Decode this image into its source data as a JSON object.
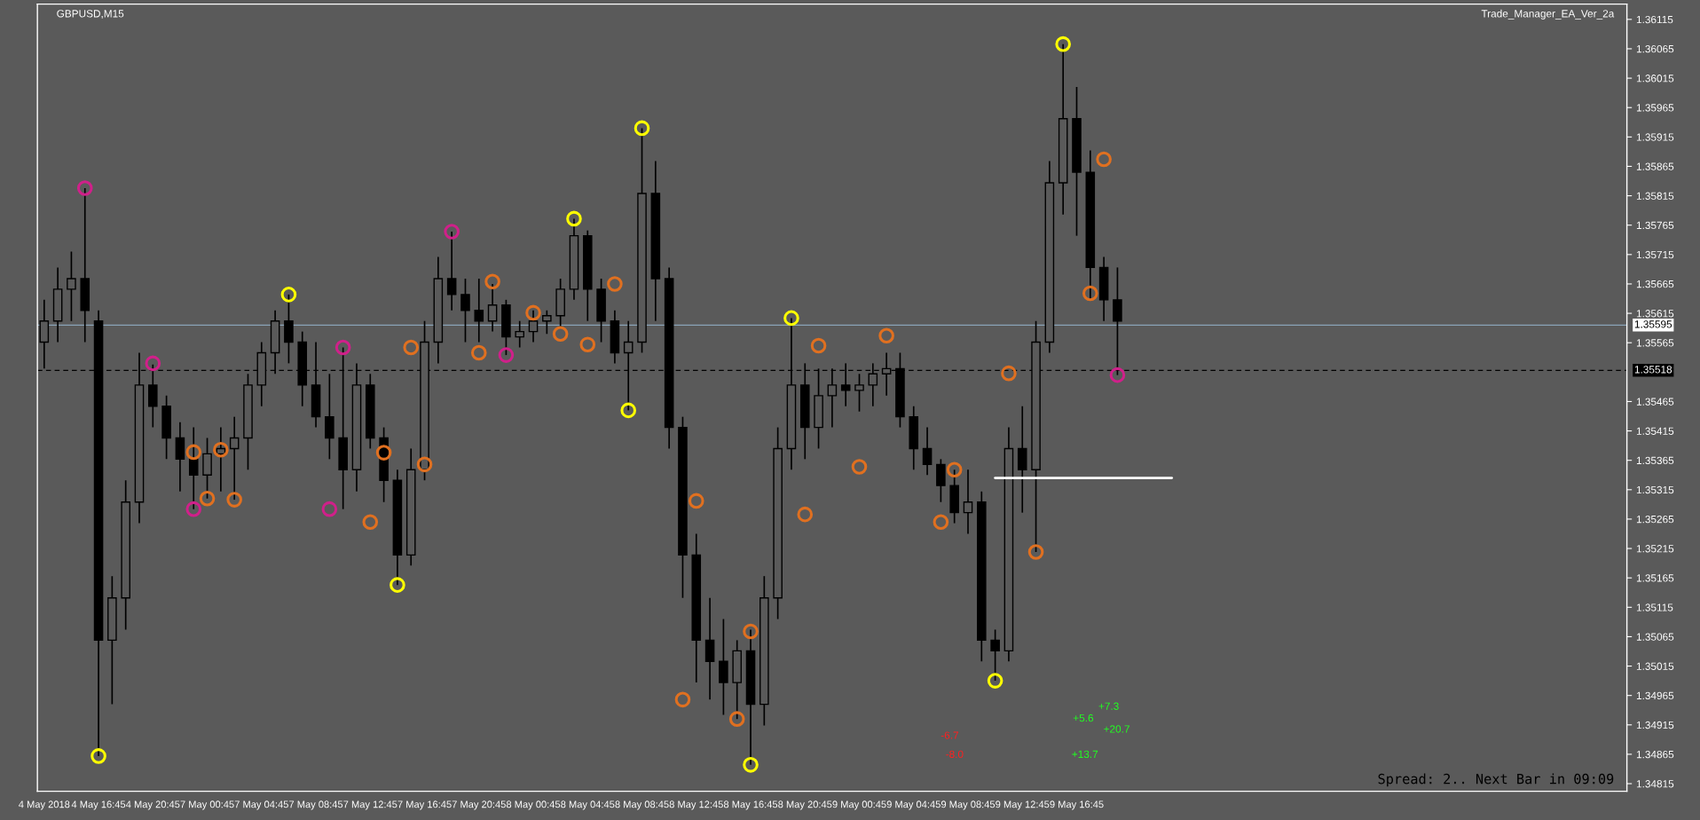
{
  "chart_data": {
    "type": "candlestick",
    "title": "GBPUSD,M15",
    "categories": [
      "4 May 2018",
      null,
      null,
      null,
      "4 May 16:45",
      null,
      null,
      null,
      "4 May 20:45",
      null,
      null,
      null,
      "7 May 00:45",
      null,
      null,
      null,
      "7 May 04:45",
      null,
      null,
      null,
      "7 May 08:45",
      null,
      null,
      null,
      "7 May 12:45",
      null,
      null,
      null,
      "7 May 16:45",
      null,
      null,
      null,
      "7 May 20:45",
      null,
      null,
      null,
      "8 May 00:45",
      null,
      null,
      null,
      "8 May 04:45",
      null,
      null,
      null,
      "8 May 08:45",
      null,
      null,
      null,
      "8 May 12:45",
      null,
      null,
      null,
      "8 May 16:45",
      null,
      null,
      null,
      "8 May 20:45",
      null,
      null,
      null,
      "9 May 00:45",
      null,
      null,
      null,
      "9 May 04:45",
      null,
      null,
      null,
      "9 May 08:45",
      null,
      null,
      null,
      "9 May 12:45",
      null,
      null,
      null,
      "9 May 16:45",
      null,
      null,
      null,
      null,
      null,
      null,
      null,
      null,
      null,
      null,
      null,
      null,
      null,
      null,
      null,
      null,
      null,
      null,
      null,
      null,
      null,
      null,
      null,
      null,
      null,
      null,
      null,
      null,
      null,
      null,
      null,
      null,
      null,
      null,
      null,
      null,
      null,
      null,
      null,
      null
    ],
    "ohlc": [
      [
        1.35566,
        1.35638,
        1.35521,
        1.35602
      ],
      [
        1.35602,
        1.35693,
        1.35566,
        1.35656
      ],
      [
        1.35656,
        1.3572,
        1.35602,
        1.35674
      ],
      [
        1.35674,
        1.35828,
        1.35566,
        1.3562
      ],
      [
        1.35602,
        1.3562,
        1.34862,
        1.35059
      ],
      [
        1.35059,
        1.35168,
        1.3495,
        1.35131
      ],
      [
        1.35131,
        1.35331,
        1.35077,
        1.35294
      ],
      [
        1.35294,
        1.35548,
        1.35258,
        1.35493
      ],
      [
        1.35493,
        1.35528,
        1.35421,
        1.35457
      ],
      [
        1.35457,
        1.35475,
        1.35367,
        1.35403
      ],
      [
        1.35403,
        1.3543,
        1.35312,
        1.35367
      ],
      [
        1.35367,
        1.35421,
        1.35282,
        1.3534
      ],
      [
        1.3534,
        1.35403,
        1.353,
        1.35376
      ],
      [
        1.35376,
        1.35421,
        1.35312,
        1.35385
      ],
      [
        1.35385,
        1.35439,
        1.35298,
        1.35403
      ],
      [
        1.35403,
        1.35512,
        1.35349,
        1.35493
      ],
      [
        1.35493,
        1.35566,
        1.35457,
        1.35548
      ],
      [
        1.35548,
        1.3562,
        1.35512,
        1.35602
      ],
      [
        1.35602,
        1.35647,
        1.3553,
        1.35566
      ],
      [
        1.35566,
        1.35584,
        1.35457,
        1.35493
      ],
      [
        1.35493,
        1.35566,
        1.35421,
        1.35439
      ],
      [
        1.35439,
        1.35512,
        1.35367,
        1.35403
      ],
      [
        1.35403,
        1.35557,
        1.35282,
        1.35349
      ],
      [
        1.35349,
        1.3553,
        1.35312,
        1.35493
      ],
      [
        1.35493,
        1.35512,
        1.35385,
        1.35403
      ],
      [
        1.35403,
        1.35421,
        1.35294,
        1.35331
      ],
      [
        1.35331,
        1.35349,
        1.35153,
        1.35204
      ],
      [
        1.35204,
        1.35385,
        1.35186,
        1.35349
      ],
      [
        1.35349,
        1.35602,
        1.35331,
        1.35566
      ],
      [
        1.35566,
        1.35711,
        1.3553,
        1.35674
      ],
      [
        1.35674,
        1.35754,
        1.3562,
        1.35647
      ],
      [
        1.35647,
        1.35674,
        1.35566,
        1.3562
      ],
      [
        1.3562,
        1.35674,
        1.35566,
        1.35602
      ],
      [
        1.35602,
        1.35665,
        1.35584,
        1.35629
      ],
      [
        1.35629,
        1.35638,
        1.35544,
        1.35575
      ],
      [
        1.35575,
        1.35602,
        1.35557,
        1.35584
      ],
      [
        1.35584,
        1.3562,
        1.35566,
        1.35602
      ],
      [
        1.35602,
        1.3562,
        1.3558,
        1.35611
      ],
      [
        1.35611,
        1.35674,
        1.35593,
        1.35656
      ],
      [
        1.35656,
        1.35776,
        1.35638,
        1.35747
      ],
      [
        1.35747,
        1.35756,
        1.35602,
        1.35656
      ],
      [
        1.35656,
        1.35674,
        1.35566,
        1.35602
      ],
      [
        1.35602,
        1.3562,
        1.3553,
        1.35548
      ],
      [
        1.35548,
        1.35602,
        1.3545,
        1.35566
      ],
      [
        1.35566,
        1.3593,
        1.35548,
        1.35819
      ],
      [
        1.35819,
        1.35874,
        1.35602,
        1.35674
      ],
      [
        1.35674,
        1.35693,
        1.35385,
        1.35421
      ],
      [
        1.35421,
        1.35439,
        1.35131,
        1.35204
      ],
      [
        1.35204,
        1.3524,
        1.34987,
        1.35059
      ],
      [
        1.35059,
        1.35131,
        1.34958,
        1.35023
      ],
      [
        1.35023,
        1.35095,
        1.34932,
        1.34987
      ],
      [
        1.34987,
        1.35059,
        1.34925,
        1.35041
      ],
      [
        1.35041,
        1.35077,
        1.34847,
        1.3495
      ],
      [
        1.3495,
        1.35168,
        1.34914,
        1.35131
      ],
      [
        1.35131,
        1.35421,
        1.35095,
        1.35385
      ],
      [
        1.35385,
        1.35607,
        1.35349,
        1.35493
      ],
      [
        1.35493,
        1.3553,
        1.35367,
        1.35421
      ],
      [
        1.35421,
        1.35521,
        1.35385,
        1.35475
      ],
      [
        1.35475,
        1.35521,
        1.35421,
        1.35493
      ],
      [
        1.35493,
        1.3553,
        1.35457,
        1.35484
      ],
      [
        1.35484,
        1.35512,
        1.35448,
        1.35493
      ],
      [
        1.35493,
        1.3553,
        1.35457,
        1.35512
      ],
      [
        1.35512,
        1.35548,
        1.35475,
        1.35521
      ],
      [
        1.35521,
        1.35548,
        1.35421,
        1.35439
      ],
      [
        1.35439,
        1.35457,
        1.35349,
        1.35385
      ],
      [
        1.35385,
        1.35421,
        1.3534,
        1.35358
      ],
      [
        1.35358,
        1.35367,
        1.35294,
        1.35322
      ],
      [
        1.35322,
        1.35349,
        1.35258,
        1.35276
      ],
      [
        1.35276,
        1.35349,
        1.3524,
        1.35294
      ],
      [
        1.35294,
        1.35312,
        1.35023,
        1.35059
      ],
      [
        1.35059,
        1.35077,
        1.3499,
        1.35041
      ],
      [
        1.35041,
        1.35421,
        1.35023,
        1.35385
      ],
      [
        1.35385,
        1.35457,
        1.35276,
        1.35349
      ],
      [
        1.35349,
        1.35602,
        1.35209,
        1.35566
      ],
      [
        1.35566,
        1.35874,
        1.35548,
        1.35837
      ],
      [
        1.35837,
        1.36073,
        1.35783,
        1.35946
      ],
      [
        1.35946,
        1.36,
        1.35747,
        1.35855
      ],
      [
        1.35855,
        1.35892,
        1.35638,
        1.35693
      ],
      [
        1.35693,
        1.35711,
        1.35602,
        1.35638
      ],
      [
        1.35638,
        1.35693,
        1.3551,
        1.35602
      ],
      null,
      null,
      null,
      null,
      null,
      null,
      null,
      null,
      null,
      null,
      null,
      null,
      null,
      null,
      null,
      null,
      null,
      null,
      null,
      null,
      null,
      null,
      null,
      null,
      null,
      null,
      null,
      null,
      null,
      null,
      null,
      null,
      null,
      null,
      null,
      null,
      null
    ],
    "color": "#000000",
    "series": [
      {
        "type": "scatter",
        "color": "#ffff00",
        "marker": "circle",
        "values": [
          null,
          null,
          null,
          null,
          1.34862,
          null,
          null,
          null,
          null,
          null,
          null,
          null,
          null,
          null,
          null,
          null,
          null,
          null,
          1.35647,
          null,
          null,
          null,
          null,
          null,
          null,
          null,
          1.35153,
          null,
          null,
          null,
          null,
          null,
          null,
          null,
          null,
          null,
          null,
          null,
          null,
          1.35776,
          null,
          null,
          null,
          1.3545,
          1.3593,
          null,
          null,
          null,
          null,
          null,
          null,
          null,
          1.34847,
          null,
          null,
          1.35607,
          null,
          null,
          null,
          null,
          null,
          null,
          null,
          null,
          null,
          null,
          null,
          null,
          null,
          null,
          1.3499,
          null,
          null,
          null,
          null,
          1.36073,
          null,
          null,
          null,
          null,
          null,
          null,
          null,
          null,
          null,
          null,
          null,
          null,
          null,
          null,
          null,
          null,
          null,
          null,
          null,
          null,
          null,
          null,
          null,
          null,
          null,
          null,
          null,
          null,
          null,
          null,
          null,
          null,
          null,
          null,
          null,
          null,
          null,
          null,
          null,
          null,
          null
        ]
      },
      {
        "type": "scatter",
        "color": "#e07020",
        "marker": "circle",
        "values": [
          null,
          null,
          null,
          null,
          null,
          null,
          null,
          null,
          null,
          null,
          null,
          1.35379,
          1.353,
          1.35383,
          1.35298,
          null,
          null,
          null,
          null,
          null,
          null,
          null,
          null,
          null,
          1.3526,
          1.35378,
          null,
          1.35557,
          1.35358,
          null,
          null,
          null,
          1.35548,
          1.35669,
          null,
          null,
          1.35616,
          null,
          1.3558,
          null,
          1.35562,
          null,
          1.35665,
          null,
          null,
          null,
          null,
          1.34958,
          1.35296,
          null,
          null,
          1.34925,
          1.35074,
          null,
          null,
          null,
          1.35273,
          1.3556,
          null,
          null,
          1.35354,
          null,
          1.35577,
          null,
          null,
          null,
          1.3526,
          1.35349,
          null,
          null,
          null,
          1.35513,
          null,
          1.35209,
          null,
          null,
          null,
          1.35649,
          1.35877,
          null,
          null,
          null,
          null,
          null,
          null,
          null,
          null,
          null,
          null,
          null,
          null,
          null,
          null,
          null,
          null,
          null,
          null,
          null,
          null,
          null,
          null,
          null,
          null,
          null,
          null,
          null,
          null,
          null,
          null,
          null,
          null,
          null,
          null,
          null,
          null,
          null,
          null
        ]
      },
      {
        "type": "scatter",
        "color": "#d0208a",
        "marker": "circle",
        "values": [
          null,
          null,
          null,
          1.35828,
          null,
          null,
          null,
          null,
          1.3553,
          null,
          null,
          1.35282,
          null,
          null,
          null,
          null,
          null,
          null,
          null,
          null,
          null,
          1.35282,
          1.35557,
          null,
          null,
          null,
          null,
          null,
          null,
          null,
          1.35754,
          null,
          null,
          null,
          1.35544,
          null,
          null,
          null,
          null,
          null,
          null,
          null,
          null,
          null,
          null,
          null,
          null,
          null,
          null,
          null,
          null,
          null,
          null,
          null,
          null,
          null,
          null,
          null,
          null,
          null,
          null,
          null,
          null,
          null,
          null,
          null,
          null,
          null,
          null,
          null,
          null,
          null,
          null,
          null,
          null,
          null,
          null,
          null,
          null,
          1.3551,
          null,
          null,
          null,
          null,
          null,
          null,
          null,
          null,
          null,
          null,
          null,
          null,
          null,
          null,
          null,
          null,
          null,
          null,
          null,
          null,
          null,
          null,
          null,
          null,
          null,
          null,
          null,
          null,
          null,
          null,
          null,
          null,
          null,
          null,
          null,
          null,
          null
        ]
      },
      {
        "type": "line",
        "color": "#ffffff",
        "marker": "none",
        "values": [
          null,
          null,
          null,
          null,
          null,
          null,
          null,
          null,
          null,
          null,
          null,
          null,
          null,
          null,
          null,
          null,
          null,
          null,
          null,
          null,
          null,
          null,
          null,
          null,
          null,
          null,
          null,
          null,
          null,
          null,
          null,
          null,
          null,
          null,
          null,
          null,
          null,
          null,
          null,
          null,
          null,
          null,
          null,
          null,
          null,
          null,
          null,
          null,
          null,
          null,
          null,
          null,
          null,
          null,
          null,
          null,
          null,
          null,
          null,
          null,
          null,
          null,
          null,
          null,
          null,
          null,
          null,
          null,
          null,
          null,
          1.35335,
          1.35335,
          1.35335,
          1.35335,
          1.35335,
          1.35335,
          1.35335,
          1.35335,
          1.35335,
          1.35335,
          1.35335,
          1.35335,
          1.35335,
          1.35335,
          null,
          null,
          null,
          null,
          null,
          null,
          null,
          null,
          null,
          null,
          null,
          null,
          null,
          null,
          null,
          null,
          null,
          null,
          null,
          null,
          null,
          null,
          null,
          null,
          null,
          null,
          null,
          null,
          null,
          null,
          null,
          null,
          null
        ]
      }
    ],
    "ylim": [
      1.34802,
      1.36141
    ],
    "yticks": [
      1.34815,
      1.34865,
      1.34915,
      1.34965,
      1.35015,
      1.35065,
      1.35115,
      1.35165,
      1.35215,
      1.35265,
      1.35315,
      1.35365,
      1.35415,
      1.35465,
      1.35565,
      1.35615,
      1.35665,
      1.35715,
      1.35765,
      1.35815,
      1.35865,
      1.35915,
      1.35965,
      1.36015,
      1.36065,
      1.36115
    ],
    "ref_lines": [
      {
        "axis": "y",
        "value": 1.35595,
        "label": "1.35595",
        "color": "#8aa4b8",
        "line_style": "solid"
      },
      {
        "axis": "y",
        "value": 1.35518,
        "label": "1.35518",
        "color": "#000000",
        "line_style": "dashed"
      }
    ],
    "annotations": [
      "Trade_Manager_EA_Ver_2a",
      "+7.3",
      "+5.6",
      "+20.7",
      "+13.7",
      "-6.7",
      "-8.0",
      "Spread: 2.. Next Bar in 09:09"
    ],
    "grid": false,
    "legend": false
  }
}
